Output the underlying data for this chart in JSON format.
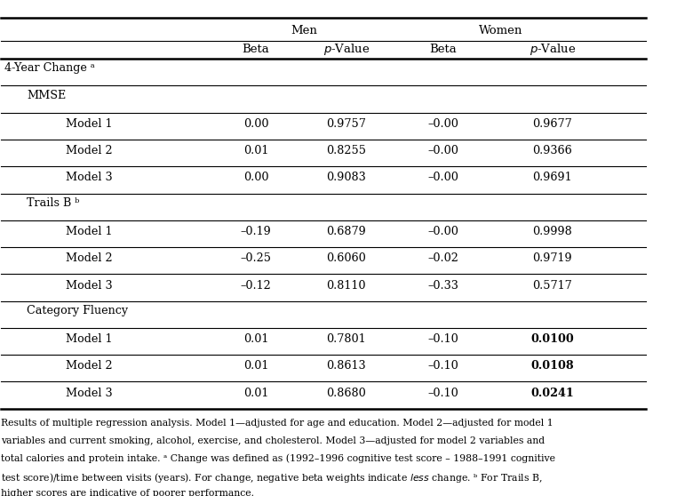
{
  "title_men": "Men",
  "title_women": "Women",
  "section_4year": "4-Year Change ᵃ",
  "section_mmse": "MMSE",
  "section_trailsb": "Trails B ᵇ",
  "section_category": "Category Fluency",
  "rows": [
    [
      "Model 1",
      "0.00",
      "0.9757",
      "–0.00",
      "0.9677",
      false
    ],
    [
      "Model 2",
      "0.01",
      "0.8255",
      "–0.00",
      "0.9366",
      false
    ],
    [
      "Model 3",
      "0.00",
      "0.9083",
      "–0.00",
      "0.9691",
      false
    ],
    [
      "Model 1",
      "–0.19",
      "0.6879",
      "–0.00",
      "0.9998",
      false
    ],
    [
      "Model 2",
      "–0.25",
      "0.6060",
      "–0.02",
      "0.9719",
      false
    ],
    [
      "Model 3",
      "–0.12",
      "0.8110",
      "–0.33",
      "0.5717",
      false
    ],
    [
      "Model 1",
      "0.01",
      "0.7801",
      "–0.10",
      "0.0100",
      true
    ],
    [
      "Model 2",
      "0.01",
      "0.8613",
      "–0.10",
      "0.0108",
      true
    ],
    [
      "Model 3",
      "0.01",
      "0.8680",
      "–0.10",
      "0.0241",
      true
    ]
  ],
  "footnote_parts": [
    {
      "text": "Results of multiple regression analysis. Model 1—adjusted for age and education. Model 2—adjusted for model 1",
      "italic_word": ""
    },
    {
      "text": "variables and current smoking, alcohol, exercise, and cholesterol. Model 3—adjusted for model 2 variables and",
      "italic_word": ""
    },
    {
      "text": "total calories and protein intake. ᵃ Change was defined as (1992–1996 cognitive test score – 1988–1991 cognitive",
      "italic_word": ""
    },
    {
      "text": "test score)/time between visits (years). For change, negative beta weights indicate |less| change. ᵇ For Trails B,",
      "italic_word": "less"
    },
    {
      "text": "higher scores are indicative of poorer performance.",
      "italic_word": ""
    }
  ],
  "bg_color": "#ffffff",
  "text_color": "#000000",
  "line_color": "#000000"
}
